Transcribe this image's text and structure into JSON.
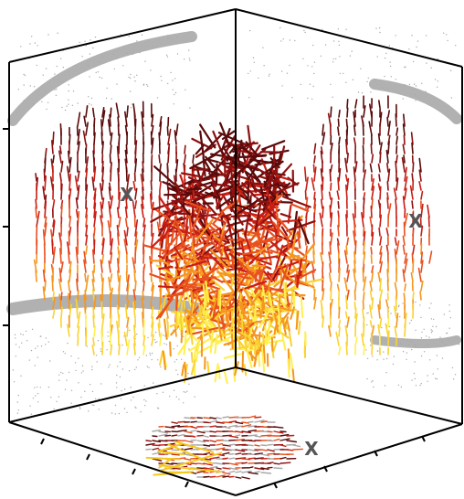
{
  "figure": {
    "description_tag": "3d-vector-field-with-projections",
    "colors": {
      "frame": "#000000",
      "projection_gray": "#a8a8a8",
      "marker": "#555555",
      "palette_hot": [
        "#5a0a0a",
        "#8c1010",
        "#c81e14",
        "#e8501e",
        "#f5961e",
        "#fad232",
        "#fff050"
      ]
    },
    "markers": {
      "symbol": "X"
    },
    "panels": [
      "left-wall-projection",
      "right-wall-projection",
      "floor-projection",
      "center-volume"
    ]
  }
}
